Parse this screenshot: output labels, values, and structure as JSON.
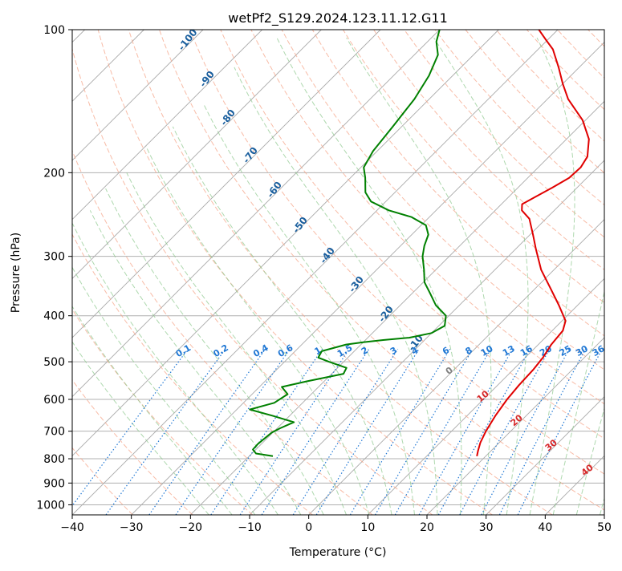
{
  "chart_data": {
    "type": "line",
    "title": "wetPf2_S129.2024.123.11.12.G11",
    "xlabel": "Temperature (°C)",
    "ylabel": "Pressure (hPa)",
    "xlim": [
      -40,
      50
    ],
    "ylim": [
      1050,
      100
    ],
    "y_scale": "log",
    "grid": true,
    "skew": true,
    "x_ticks": [
      -40,
      -30,
      -20,
      -10,
      0,
      10,
      20,
      30,
      40,
      50
    ],
    "y_ticks": [
      100,
      200,
      300,
      400,
      500,
      600,
      700,
      800,
      900,
      1000
    ],
    "series": [
      {
        "role": "temperature",
        "color": "#e00000",
        "points": [
          {
            "p": 790,
            "t": 18.5
          },
          {
            "p": 770,
            "t": 17.8
          },
          {
            "p": 740,
            "t": 16.8
          },
          {
            "p": 700,
            "t": 15.8
          },
          {
            "p": 650,
            "t": 14.8
          },
          {
            "p": 600,
            "t": 14.0
          },
          {
            "p": 560,
            "t": 13.6
          },
          {
            "p": 520,
            "t": 13.4
          },
          {
            "p": 490,
            "t": 13.0
          },
          {
            "p": 460,
            "t": 12.2
          },
          {
            "p": 430,
            "t": 11.8
          },
          {
            "p": 410,
            "t": 10.6
          },
          {
            "p": 380,
            "t": 6.8
          },
          {
            "p": 350,
            "t": 2.5
          },
          {
            "p": 320,
            "t": -2.2
          },
          {
            "p": 290,
            "t": -6.5
          },
          {
            "p": 270,
            "t": -9.5
          },
          {
            "p": 250,
            "t": -12.8
          },
          {
            "p": 240,
            "t": -15.5
          },
          {
            "p": 233,
            "t": -16.5
          },
          {
            "p": 225,
            "t": -15.5
          },
          {
            "p": 215,
            "t": -14.2
          },
          {
            "p": 205,
            "t": -13.0
          },
          {
            "p": 195,
            "t": -12.8
          },
          {
            "p": 185,
            "t": -13.5
          },
          {
            "p": 170,
            "t": -16.2
          },
          {
            "p": 155,
            "t": -20.5
          },
          {
            "p": 140,
            "t": -26.5
          },
          {
            "p": 130,
            "t": -30.0
          },
          {
            "p": 120,
            "t": -33.5
          },
          {
            "p": 110,
            "t": -37.5
          },
          {
            "p": 105,
            "t": -40.3
          },
          {
            "p": 100,
            "t": -43.2
          }
        ]
      },
      {
        "role": "dewpoint",
        "color": "#008000",
        "points": [
          {
            "p": 790,
            "t": -16.0
          },
          {
            "p": 780,
            "t": -19.3
          },
          {
            "p": 765,
            "t": -20.5
          },
          {
            "p": 745,
            "t": -20.6
          },
          {
            "p": 725,
            "t": -20.4
          },
          {
            "p": 705,
            "t": -20.2
          },
          {
            "p": 690,
            "t": -19.5
          },
          {
            "p": 670,
            "t": -18.2
          },
          {
            "p": 650,
            "t": -22.8
          },
          {
            "p": 630,
            "t": -27.8
          },
          {
            "p": 610,
            "t": -24.8
          },
          {
            "p": 585,
            "t": -24.0
          },
          {
            "p": 565,
            "t": -26.2
          },
          {
            "p": 550,
            "t": -23.0
          },
          {
            "p": 530,
            "t": -18.0
          },
          {
            "p": 515,
            "t": -18.5
          },
          {
            "p": 500,
            "t": -22.5
          },
          {
            "p": 490,
            "t": -25.0
          },
          {
            "p": 475,
            "t": -25.5
          },
          {
            "p": 460,
            "t": -22.5
          },
          {
            "p": 455,
            "t": -20.0
          },
          {
            "p": 450,
            "t": -17.0
          },
          {
            "p": 445,
            "t": -13.0
          },
          {
            "p": 435,
            "t": -10.0
          },
          {
            "p": 420,
            "t": -9.0
          },
          {
            "p": 400,
            "t": -10.5
          },
          {
            "p": 380,
            "t": -14.0
          },
          {
            "p": 360,
            "t": -16.8
          },
          {
            "p": 340,
            "t": -19.8
          },
          {
            "p": 320,
            "t": -22.0
          },
          {
            "p": 300,
            "t": -24.5
          },
          {
            "p": 285,
            "t": -26.0
          },
          {
            "p": 270,
            "t": -27.2
          },
          {
            "p": 258,
            "t": -29.2
          },
          {
            "p": 248,
            "t": -33.0
          },
          {
            "p": 240,
            "t": -38.0
          },
          {
            "p": 230,
            "t": -42.5
          },
          {
            "p": 220,
            "t": -45.0
          },
          {
            "p": 205,
            "t": -47.5
          },
          {
            "p": 195,
            "t": -49.5
          },
          {
            "p": 180,
            "t": -50.7
          },
          {
            "p": 160,
            "t": -51.5
          },
          {
            "p": 140,
            "t": -52.5
          },
          {
            "p": 125,
            "t": -54.0
          },
          {
            "p": 113,
            "t": -56.0
          },
          {
            "p": 106,
            "t": -58.5
          },
          {
            "p": 100,
            "t": -60.0
          }
        ]
      }
    ],
    "annotations": {
      "dry_adiabat_labels": [
        "-100",
        "-90",
        "-80",
        "-70",
        "-60",
        "-50",
        "-40",
        "-30",
        "-20",
        "-10"
      ],
      "mixing_ratio_labels": [
        "0.1",
        "0.2",
        "0.4",
        "0.6",
        "1",
        "1.5",
        "2",
        "3",
        "4",
        "6",
        "8",
        "10",
        "13",
        "16",
        "20",
        "25",
        "30",
        "36"
      ],
      "moist_adiabat_labels": [
        "0",
        "10",
        "20",
        "30",
        "40"
      ]
    },
    "colors": {
      "temperature": "#e00000",
      "dewpoint": "#008000",
      "isotherm": "#a9a9a9",
      "isobar": "#b0b0b0",
      "dry_adiabat": "#f5a58a",
      "moist_adiabat": "#8cc88c",
      "mixing_ratio": "#1f77d4",
      "dry_label": "#1a5f9e",
      "moist_label": "#d62728"
    }
  }
}
